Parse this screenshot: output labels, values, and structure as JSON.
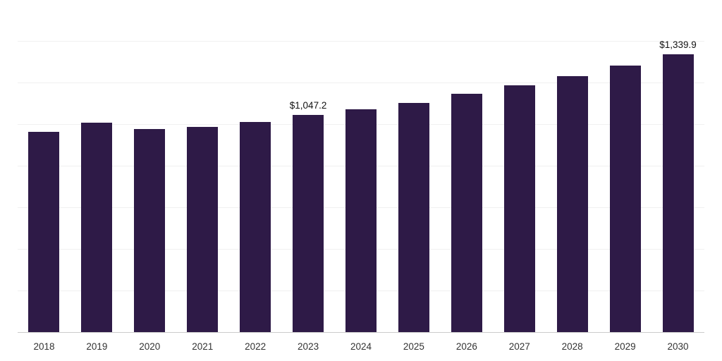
{
  "chart_data": {
    "type": "bar",
    "title": "",
    "xlabel": "",
    "ylabel": "",
    "categories": [
      "2018",
      "2019",
      "2020",
      "2021",
      "2022",
      "2023",
      "2024",
      "2025",
      "2026",
      "2027",
      "2028",
      "2029",
      "2030"
    ],
    "values": [
      965.0,
      1010.0,
      980.0,
      990.0,
      1015.0,
      1047.2,
      1075.0,
      1105.0,
      1150.0,
      1190.0,
      1235.0,
      1285.0,
      1339.9
    ],
    "value_labels": [
      "",
      "",
      "",
      "",
      "",
      "$1,047.2",
      "",
      "",
      "",
      "",
      "",
      "",
      "$1,339.9"
    ],
    "ylim": [
      0,
      1600
    ],
    "gridline_step": 200,
    "grid": "horizontal-faint",
    "legend": "none",
    "bar_color": "#2e1a47",
    "axis_line_color": "#cccccc",
    "gridline_color": "#f0f0f0",
    "label_color": "#333333"
  }
}
